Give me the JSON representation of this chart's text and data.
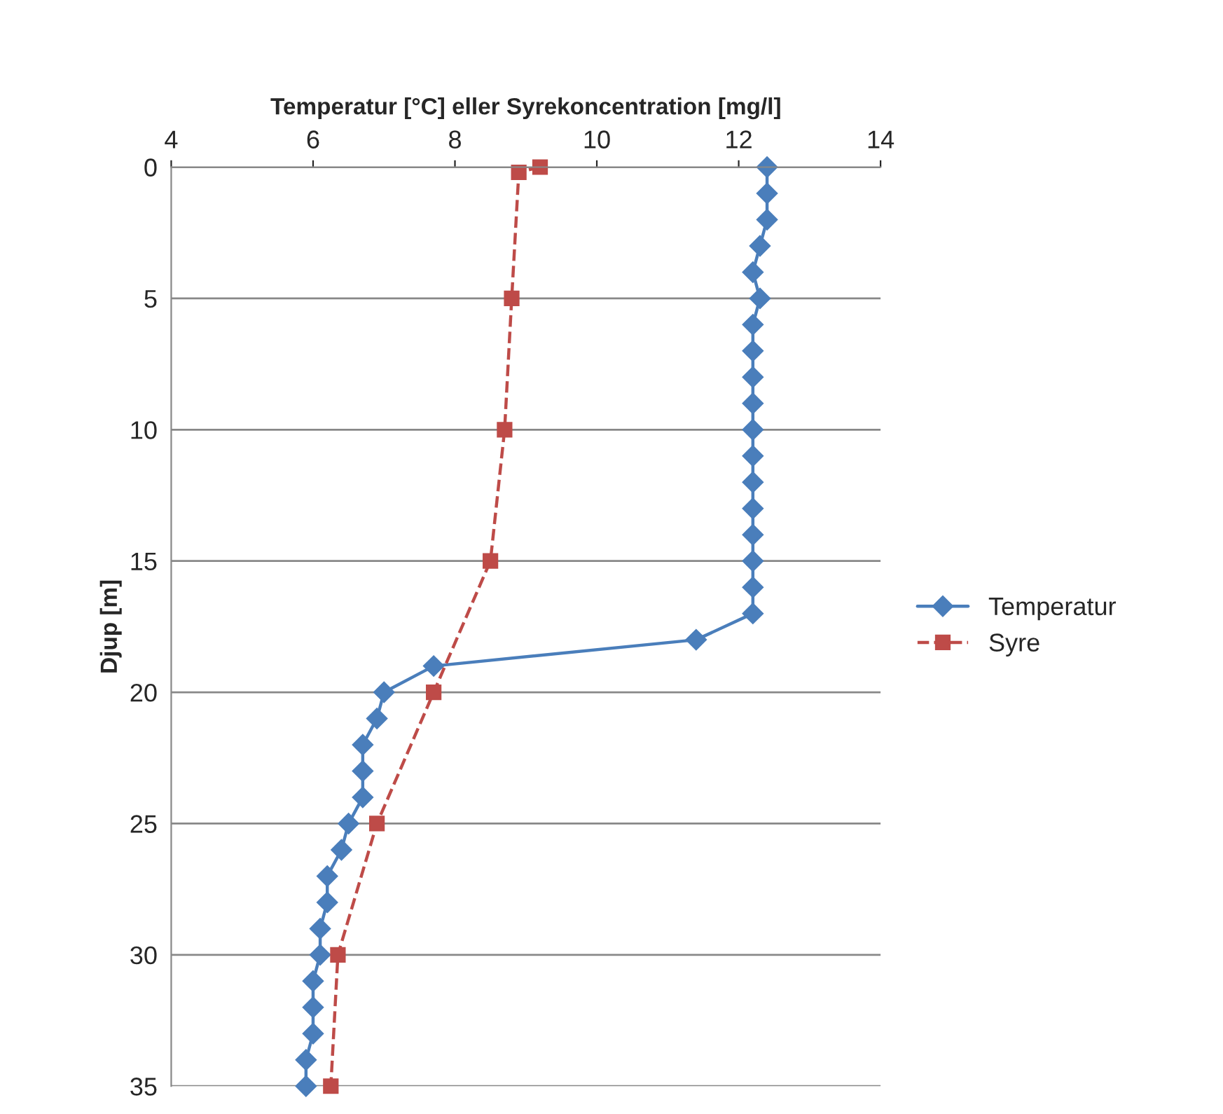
{
  "chart_data": {
    "type": "line",
    "orientation": "horizontal",
    "xlabel": "Temperatur [°C] eller Syrekoncentration [mg/l]",
    "ylabel": "Djup [m]",
    "xlim": [
      4,
      14
    ],
    "xticks": [
      4,
      6,
      8,
      10,
      12,
      14
    ],
    "ylim": [
      35,
      0
    ],
    "yticks": [
      0,
      5,
      10,
      15,
      20,
      25,
      30,
      35
    ],
    "grid": "y",
    "legend": "right",
    "series": [
      {
        "name": "Temperatur",
        "color": "#4a7ebb",
        "marker": "diamond",
        "line_style": "solid",
        "x": [
          0,
          1,
          2,
          3,
          4,
          5,
          6,
          7,
          8,
          9,
          10,
          11,
          12,
          13,
          14,
          15,
          16,
          17,
          18,
          19,
          20,
          21,
          22,
          23,
          24,
          25,
          26,
          27,
          28,
          29,
          30,
          31,
          32,
          33,
          34,
          35
        ],
        "values": [
          12.4,
          12.4,
          12.4,
          12.3,
          12.2,
          12.3,
          12.2,
          12.2,
          12.2,
          12.2,
          12.2,
          12.2,
          12.2,
          12.2,
          12.2,
          12.2,
          12.2,
          12.2,
          11.4,
          7.7,
          7.0,
          6.9,
          6.7,
          6.7,
          6.7,
          6.5,
          6.4,
          6.2,
          6.2,
          6.1,
          6.1,
          6.0,
          6.0,
          6.0,
          5.9,
          5.9
        ]
      },
      {
        "name": "Syre",
        "color": "#be4b48",
        "marker": "square",
        "line_style": "dashed",
        "x": [
          0,
          0.2,
          5,
          10,
          15,
          20,
          25,
          30,
          35
        ],
        "values": [
          9.2,
          8.9,
          8.8,
          8.7,
          8.5,
          7.7,
          6.9,
          6.35,
          6.25
        ]
      }
    ]
  }
}
